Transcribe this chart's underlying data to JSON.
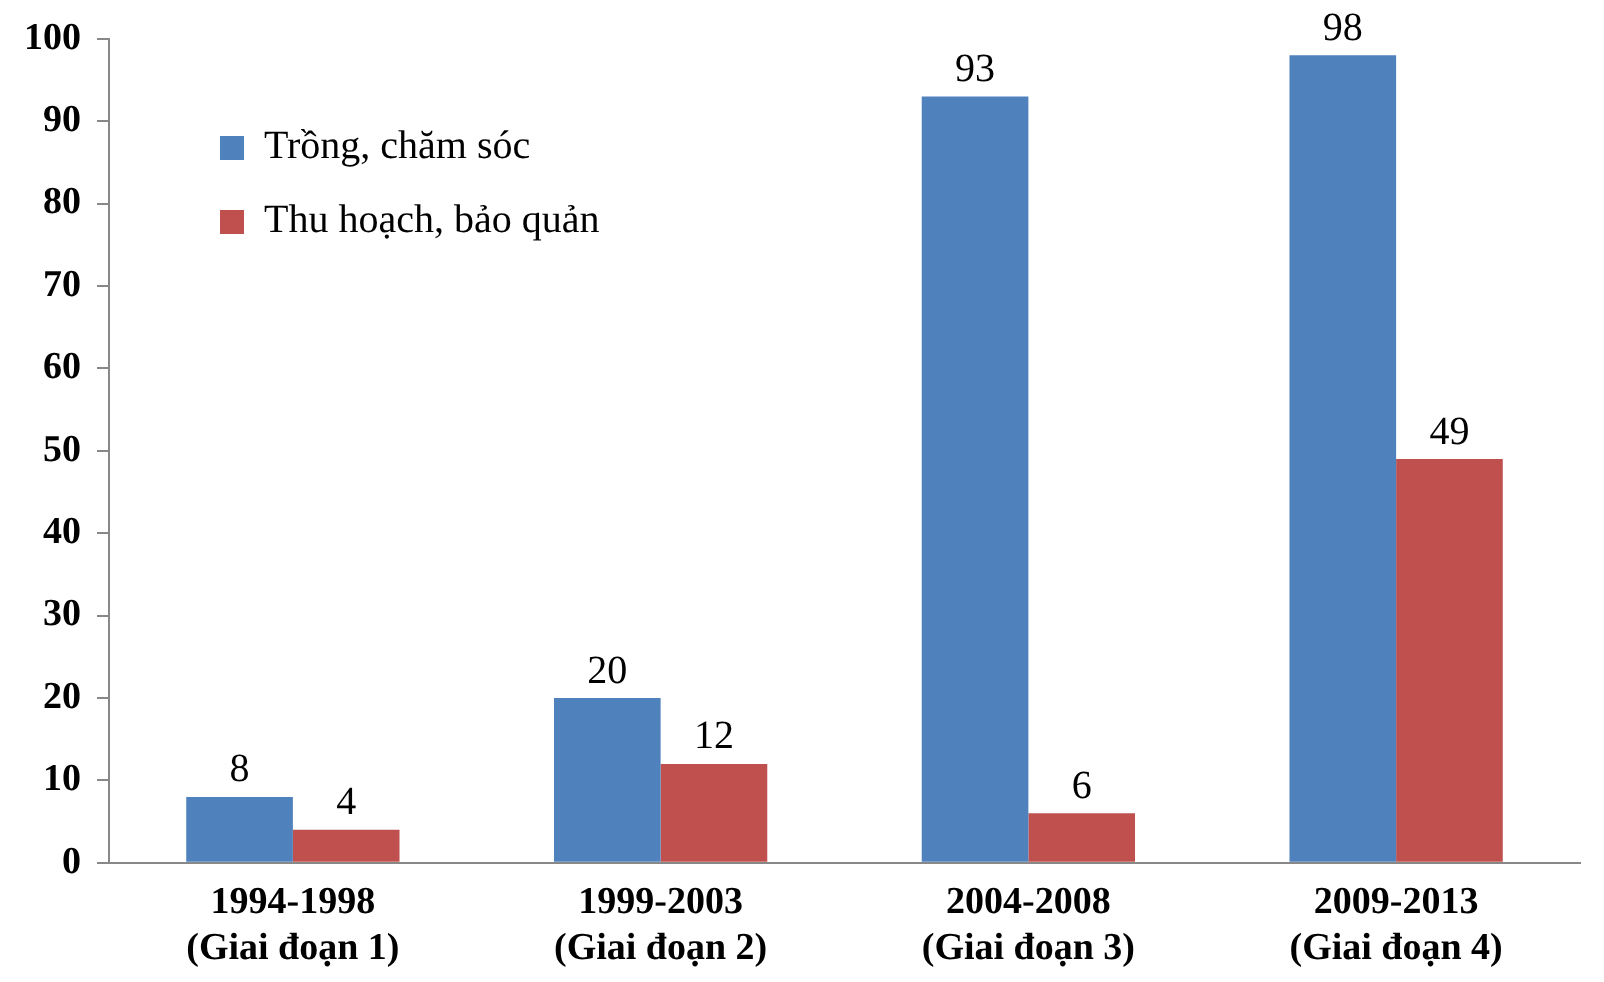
{
  "chart_data": {
    "type": "bar",
    "categories": [
      "1994-1998\n(Giai đoạn 1)",
      "1999-2003\n(Giai đoạn 2)",
      "2004-2008\n(Giai đoạn 3)",
      "2009-2013\n(Giai đoạn 4)"
    ],
    "series": [
      {
        "name": "Trồng, chăm sóc",
        "color": "#4f81bd",
        "values": [
          8,
          20,
          93,
          98
        ]
      },
      {
        "name": "Thu hoạch, bảo quản",
        "color": "#c0504d",
        "values": [
          4,
          12,
          6,
          49
        ]
      }
    ],
    "ylim": [
      0,
      100
    ],
    "yticks": [
      0,
      10,
      20,
      30,
      40,
      50,
      60,
      70,
      80,
      90,
      100
    ],
    "grid": false,
    "legend": "top left",
    "data_labels": true
  }
}
